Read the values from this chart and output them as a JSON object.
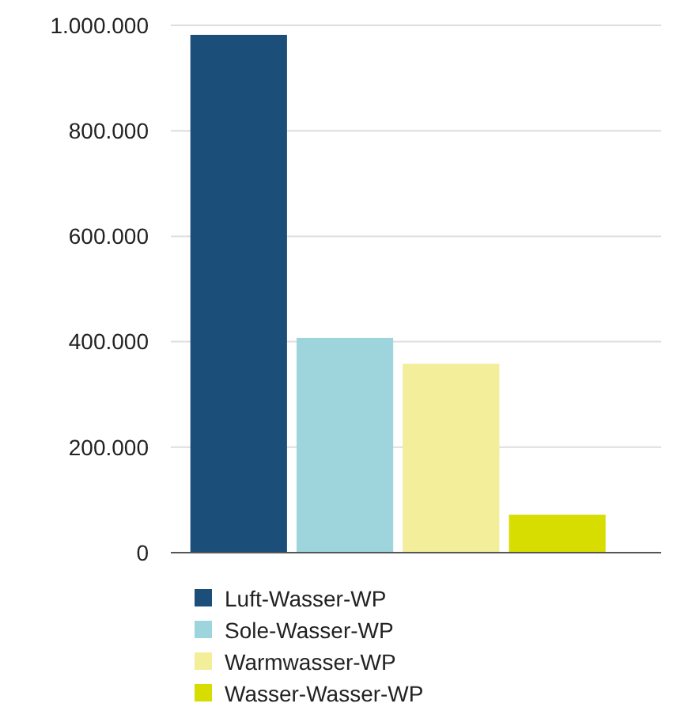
{
  "chart_data": {
    "type": "bar",
    "categories": [
      null,
      null,
      null,
      null
    ],
    "series": [
      {
        "name": "Luft-Wasser-WP",
        "color": "#1b4f7a",
        "values": [
          982000,
          null,
          null,
          null
        ]
      },
      {
        "name": "Sole-Wasser-WP",
        "color": "#9ed5dc",
        "values": [
          null,
          407000,
          null,
          null
        ]
      },
      {
        "name": "Warmwasser-WP",
        "color": "#f2ee9a",
        "values": [
          null,
          null,
          358000,
          null
        ]
      },
      {
        "name": "Wasser-Wasser-WP",
        "color": "#d7dd00",
        "values": [
          null,
          null,
          null,
          72000
        ]
      }
    ],
    "ylim": [
      0,
      1000000
    ],
    "yticks": [
      {
        "value": 0,
        "label": "0"
      },
      {
        "value": 200000,
        "label": "200.000"
      },
      {
        "value": 400000,
        "label": "400.000"
      },
      {
        "value": 600000,
        "label": "600.000"
      },
      {
        "value": 800000,
        "label": "800.000"
      },
      {
        "value": 1000000,
        "label": "1.000.000"
      }
    ],
    "grid": "y",
    "legend": "bottom"
  }
}
